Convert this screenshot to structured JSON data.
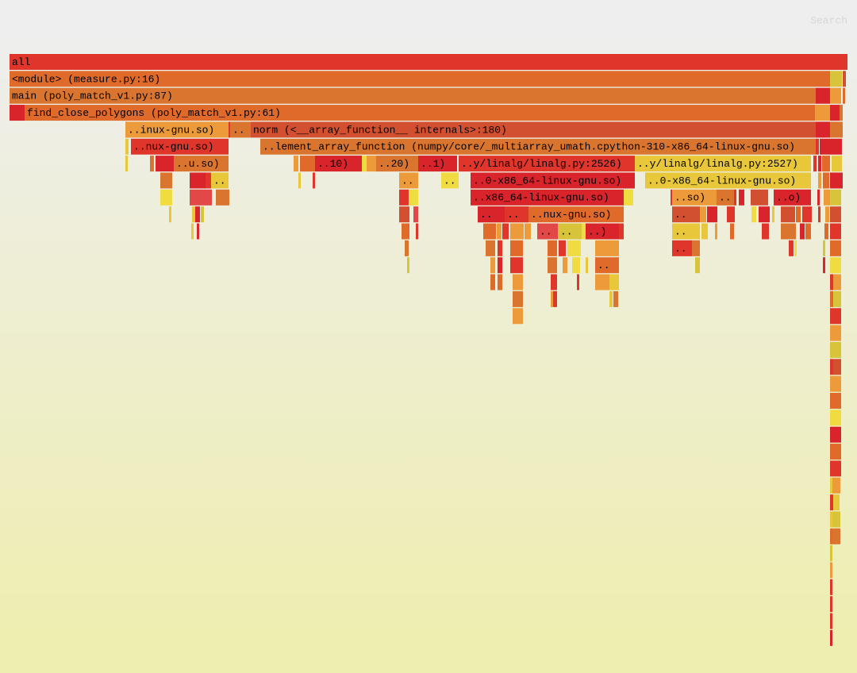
{
  "search": "Search",
  "frames": [
    "all",
    "<module> (measure.py:16)",
    "main (poly_match_v1.py:87)",
    "find_close_polygons (poly_match_v1.py:61)",
    "..inux-gnu.so)",
    "..",
    "norm (<__array_function__ internals>:180)",
    "..nux-gnu.so)",
    "..lement_array_function (numpy/core/_multiarray_umath.cpython-310-x86_64-linux-gnu.so)",
    "..u.so)",
    "..10)",
    "..20)",
    "..1)",
    "..y/linalg/linalg.py:2526)",
    "..y/linalg/linalg.py:2527)",
    "..",
    "..",
    "..",
    "..0-x86_64-linux-gnu.so)",
    "..0-x86_64-linux-gnu.so)",
    "..x86_64-linux-gnu.so)",
    "..so)",
    "..",
    "..o)",
    "..",
    "..",
    "..nux-gnu.so)",
    "..",
    "..",
    "..",
    "..)",
    "..",
    "..",
    ".."
  ]
}
